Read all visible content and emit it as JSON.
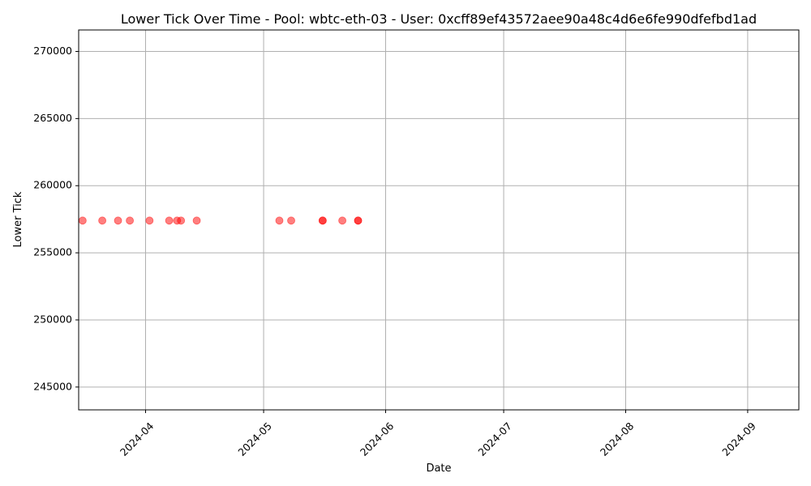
{
  "chart_data": {
    "type": "scatter",
    "title": "Lower Tick Over Time - Pool: wbtc-eth-03 - User: 0xcff89ef43572aee90a48c4d6e6fe990dfefbd1ad",
    "xlabel": "Date",
    "ylabel": "Lower Tick",
    "xlim": [
      "2024-03-15",
      "2024-09-14"
    ],
    "ylim": [
      243300,
      271600
    ],
    "x_ticks": [
      "2024-04",
      "2024-05",
      "2024-06",
      "2024-07",
      "2024-08",
      "2024-09"
    ],
    "y_ticks": [
      245000,
      250000,
      255000,
      260000,
      265000,
      270000
    ],
    "grid": true,
    "marker_color": "#ff0000",
    "marker_alpha": 0.5,
    "points": [
      {
        "x": "2024-03-16",
        "y": 257400
      },
      {
        "x": "2024-03-21",
        "y": 257400
      },
      {
        "x": "2024-03-25",
        "y": 257400
      },
      {
        "x": "2024-03-28",
        "y": 257400
      },
      {
        "x": "2024-04-02",
        "y": 257400
      },
      {
        "x": "2024-04-07",
        "y": 257400
      },
      {
        "x": "2024-04-09",
        "y": 257400
      },
      {
        "x": "2024-04-10",
        "y": 257400
      },
      {
        "x": "2024-04-14",
        "y": 257400
      },
      {
        "x": "2024-05-05",
        "y": 257400
      },
      {
        "x": "2024-05-08",
        "y": 257400
      },
      {
        "x": "2024-05-16",
        "y": 257400
      },
      {
        "x": "2024-05-16",
        "y": 257400
      },
      {
        "x": "2024-05-21",
        "y": 257400
      },
      {
        "x": "2024-05-25",
        "y": 257400
      },
      {
        "x": "2024-05-25",
        "y": 257400
      }
    ]
  }
}
